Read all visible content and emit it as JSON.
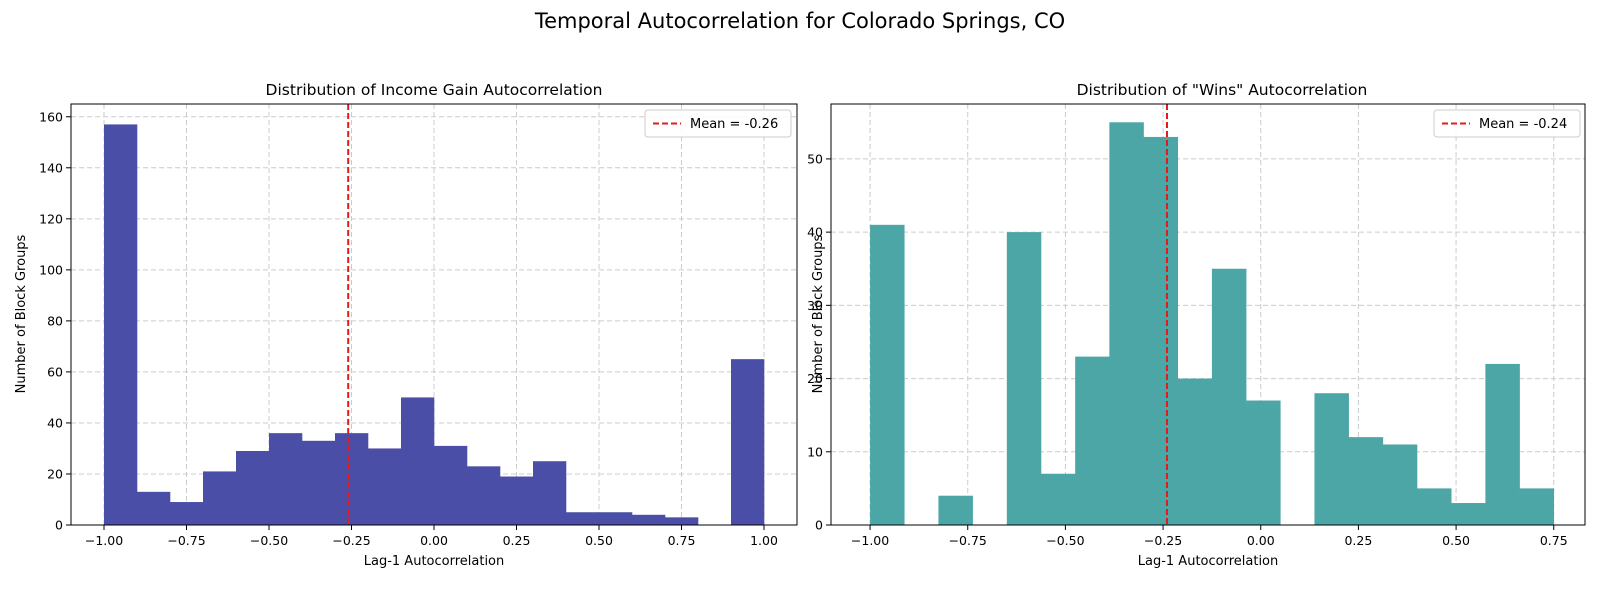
{
  "figure": {
    "title": "Temporal Autocorrelation for Colorado Springs, CO"
  },
  "chart_data": [
    {
      "type": "bar",
      "title": "Distribution of Income Gain Autocorrelation",
      "xlabel": "Lag-1 Autocorrelation",
      "ylabel": "Number of Block Groups",
      "xlim": [
        -1.1,
        1.1
      ],
      "ylim": [
        0,
        165
      ],
      "xticks": [
        -1.0,
        -0.75,
        -0.5,
        -0.25,
        0.0,
        0.25,
        0.5,
        0.75,
        1.0
      ],
      "xtick_labels": [
        "−1.00",
        "−0.75",
        "−0.50",
        "−0.25",
        "0.00",
        "0.25",
        "0.50",
        "0.75",
        "1.00"
      ],
      "yticks": [
        0,
        20,
        40,
        60,
        80,
        100,
        120,
        140,
        160
      ],
      "ytick_labels": [
        "0",
        "20",
        "40",
        "60",
        "80",
        "100",
        "120",
        "140",
        "160"
      ],
      "grid": true,
      "bar_color": "#4b4ea6",
      "bin_edges": [
        -1.0,
        -0.9,
        -0.8,
        -0.7,
        -0.6,
        -0.5,
        -0.4,
        -0.3,
        -0.2,
        -0.1,
        0.0,
        0.1,
        0.2,
        0.3,
        0.4,
        0.5,
        0.6,
        0.7,
        0.8,
        0.9,
        1.0
      ],
      "counts": [
        157,
        13,
        9,
        21,
        29,
        36,
        33,
        36,
        30,
        50,
        31,
        23,
        19,
        25,
        5,
        5,
        4,
        3,
        0,
        65
      ],
      "mean_line": {
        "value": -0.26,
        "label": "Mean = -0.26",
        "color": "#e41a1c",
        "style": "dashed"
      },
      "legend_position": "upper right"
    },
    {
      "type": "bar",
      "title": "Distribution of \"Wins\" Autocorrelation",
      "xlabel": "Lag-1 Autocorrelation",
      "ylabel": "Number of Block Groups",
      "xlim": [
        -1.1,
        0.83
      ],
      "ylim": [
        0,
        57.5
      ],
      "xticks": [
        -1.0,
        -0.75,
        -0.5,
        -0.25,
        0.0,
        0.25,
        0.5,
        0.75
      ],
      "xtick_labels": [
        "−1.00",
        "−0.75",
        "−0.50",
        "−0.25",
        "0.00",
        "0.25",
        "0.50",
        "0.75"
      ],
      "yticks": [
        0,
        10,
        20,
        30,
        40,
        50
      ],
      "ytick_labels": [
        "0",
        "10",
        "20",
        "30",
        "40",
        "50"
      ],
      "grid": true,
      "bar_color": "#4ca6a6",
      "bin_edges": [
        -1.0,
        -0.9125,
        -0.825,
        -0.7375,
        -0.65,
        -0.5625,
        -0.475,
        -0.3875,
        -0.3,
        -0.2125,
        -0.125,
        -0.0375,
        0.05,
        0.1375,
        0.225,
        0.3125,
        0.4,
        0.4875,
        0.575,
        0.6625,
        0.75
      ],
      "counts": [
        41,
        0,
        4,
        0,
        40,
        7,
        23,
        55,
        53,
        20,
        35,
        17,
        0,
        18,
        12,
        11,
        5,
        3,
        22,
        5
      ],
      "mean_line": {
        "value": -0.24,
        "label": "Mean = -0.24",
        "color": "#e41a1c",
        "style": "dashed"
      },
      "legend_position": "upper right"
    }
  ]
}
